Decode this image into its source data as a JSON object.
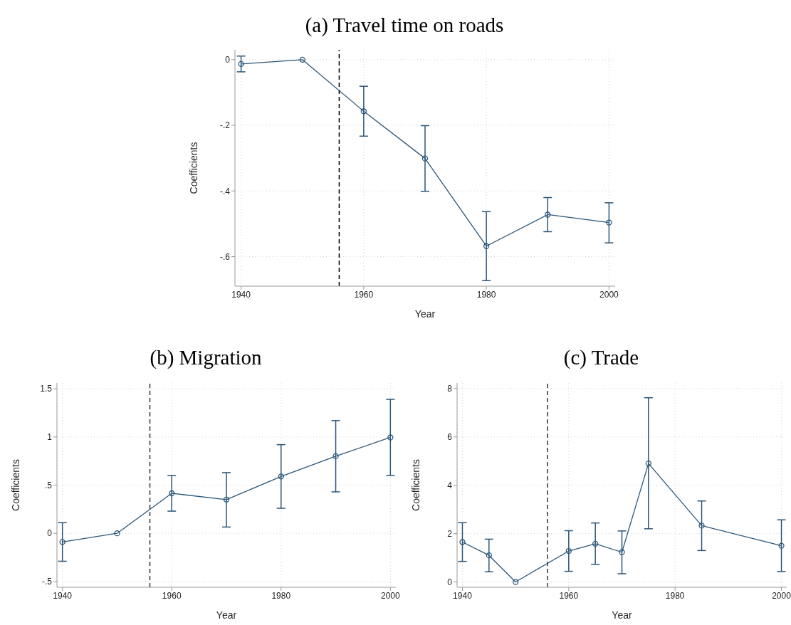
{
  "chart_data": [
    {
      "type": "line",
      "title": "(a) Travel time on roads",
      "xlabel": "Year",
      "ylabel": "Coefficients",
      "x": [
        1940,
        1950,
        1960,
        1970,
        1980,
        1990,
        2000
      ],
      "values": [
        -0.013,
        0,
        -0.157,
        -0.301,
        -0.568,
        -0.472,
        -0.496
      ],
      "errors": [
        [
          -0.037,
          0.011
        ],
        null,
        [
          -0.233,
          -0.081
        ],
        [
          -0.401,
          -0.201
        ],
        [
          -0.673,
          -0.463
        ],
        [
          -0.524,
          -0.42
        ],
        [
          -0.558,
          -0.436
        ]
      ],
      "color": "#2b5679",
      "marker": "circle",
      "line_style": "solid",
      "grid": true,
      "xlim": [
        1939,
        2001
      ],
      "xticks": [
        1940,
        1960,
        1980,
        2000
      ],
      "ylim": [
        -0.69,
        0.03
      ],
      "yticks": [
        {
          "value": -0.6,
          "label": "-.6"
        },
        {
          "value": -0.4,
          "label": "-.4"
        },
        {
          "value": -0.2,
          "label": "-.2"
        },
        0
      ],
      "ref_lines": [
        {
          "axis": "x",
          "value": 1956,
          "color": "#000000",
          "line_style": "dashed"
        }
      ]
    },
    {
      "type": "line",
      "title": "(b) Migration",
      "xlabel": "Year",
      "ylabel": "Coefficients",
      "x": [
        1940,
        1950,
        1960,
        1970,
        1980,
        1990,
        2000
      ],
      "values": [
        -0.09,
        0,
        0.415,
        0.35,
        0.59,
        0.8,
        0.995
      ],
      "errors": [
        [
          -0.29,
          0.11
        ],
        null,
        [
          0.23,
          0.6
        ],
        [
          0.065,
          0.63
        ],
        [
          0.26,
          0.92
        ],
        [
          0.43,
          1.17
        ],
        [
          0.6,
          1.39
        ]
      ],
      "color": "#2b5679",
      "marker": "circle",
      "line_style": "solid",
      "grid": true,
      "xlim": [
        1939,
        2001
      ],
      "xticks": [
        1940,
        1960,
        1980,
        2000
      ],
      "ylim": [
        -0.56,
        1.56
      ],
      "yticks": [
        {
          "value": -0.5,
          "label": "-.5"
        },
        0,
        {
          "value": 0.5,
          "label": ".5"
        },
        1,
        1.5
      ],
      "ref_lines": [
        {
          "axis": "x",
          "value": 1956,
          "color": "#333333",
          "line_style": "dashed"
        }
      ]
    },
    {
      "type": "line",
      "title": "(c) Trade",
      "xlabel": "Year",
      "ylabel": "Coefficients",
      "x": [
        1940,
        1945,
        1950,
        1960,
        1965,
        1970,
        1975,
        1985,
        2000
      ],
      "values": [
        1.65,
        1.1,
        0,
        1.28,
        1.58,
        1.23,
        4.9,
        2.33,
        1.5
      ],
      "errors": [
        [
          0.85,
          2.45
        ],
        [
          0.42,
          1.77
        ],
        null,
        [
          0.44,
          2.12
        ],
        [
          0.73,
          2.44
        ],
        [
          0.34,
          2.11
        ],
        [
          2.2,
          7.62
        ],
        [
          1.3,
          3.35
        ],
        [
          0.43,
          2.57
        ]
      ],
      "color": "#2b5679",
      "marker": "circle",
      "line_style": "solid",
      "grid": true,
      "xlim": [
        1939,
        2001
      ],
      "xticks": [
        1940,
        1960,
        1980,
        2000
      ],
      "ylim": [
        -0.22,
        8.23
      ],
      "yticks": [
        0,
        2,
        4,
        6,
        8
      ],
      "ref_lines": [
        {
          "axis": "x",
          "value": 1956,
          "color": "#333333",
          "line_style": "dashed"
        }
      ]
    }
  ]
}
